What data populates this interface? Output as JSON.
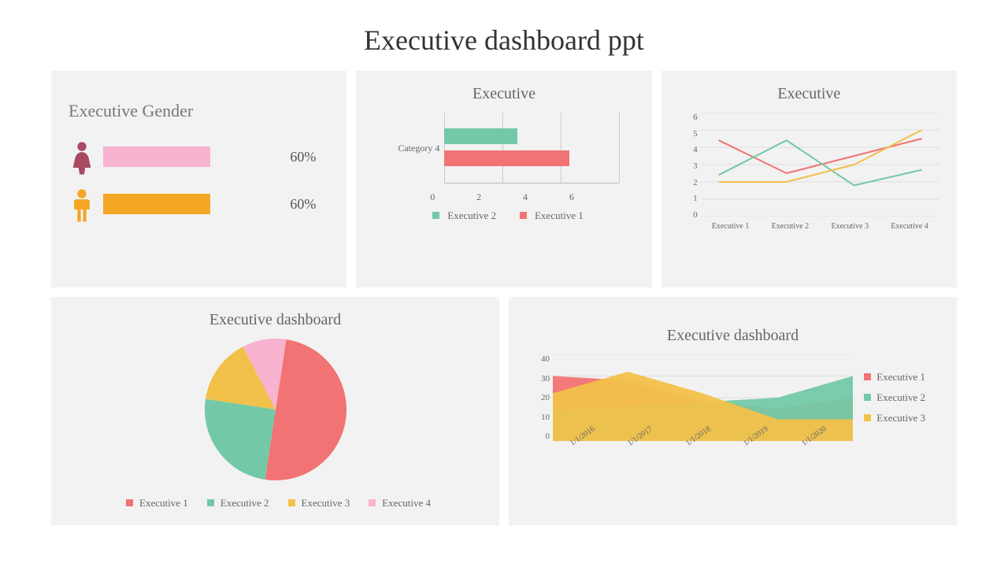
{
  "title": "Executive dashboard ppt",
  "colors": {
    "coral": "#f17373",
    "mint": "#73c9a7",
    "gold": "#f2c14a",
    "pink": "#f7b3d0",
    "orange": "#f5a623",
    "maroon": "#a84a63",
    "card_bg": "#f2f2f2",
    "text": "#666666",
    "grid": "#cccccc"
  },
  "gender_card": {
    "title": "Executive Gender",
    "rows": [
      {
        "icon": "female",
        "icon_color": "#a84a63",
        "bar_color": "#f7b3d0",
        "pct": 60,
        "label": "60%"
      },
      {
        "icon": "male",
        "icon_color": "#f5a623",
        "bar_color": "#f5a623",
        "pct": 60,
        "label": "60%"
      }
    ]
  },
  "hbar_card": {
    "title": "Executive",
    "category_label": "Category 4",
    "xmax": 6,
    "xtick_step": 2,
    "xticks": [
      "0",
      "2",
      "4",
      "6"
    ],
    "series": [
      {
        "name": "Executive 2",
        "color": "#73c9a7",
        "value": 2.5
      },
      {
        "name": "Executive 1",
        "color": "#f17373",
        "value": 4.3
      }
    ]
  },
  "line_card": {
    "title": "Executive",
    "ymax": 6,
    "ytick_step": 1,
    "yticks": [
      "0",
      "1",
      "2",
      "3",
      "4",
      "5",
      "6"
    ],
    "categories": [
      "Executive 1",
      "Executive 2",
      "Executive 3",
      "Executive 4"
    ],
    "series": [
      {
        "color": "#f17373",
        "values": [
          4.4,
          2.5,
          3.5,
          4.5
        ]
      },
      {
        "color": "#73c9a7",
        "values": [
          2.4,
          4.4,
          1.8,
          2.7
        ]
      },
      {
        "color": "#f2c14a",
        "values": [
          2.0,
          2.0,
          3.0,
          5.0
        ]
      }
    ],
    "grid_color": "#d9d9d9"
  },
  "pie_card": {
    "title": "Executive dashboard",
    "slices": [
      {
        "name": "Executive 1",
        "color": "#f17373",
        "value": 50
      },
      {
        "name": "Executive 2",
        "color": "#73c9a7",
        "value": 25
      },
      {
        "name": "Executive 3",
        "color": "#f2c14a",
        "value": 15
      },
      {
        "name": "Executive 4",
        "color": "#f7b3d0",
        "value": 10
      }
    ]
  },
  "area_card": {
    "title": "Executive dashboard",
    "ymax": 40,
    "ytick_step": 10,
    "yticks": [
      "0",
      "10",
      "20",
      "30",
      "40"
    ],
    "categories": [
      "1/1/2016",
      "1/1/2017",
      "1/1/2018",
      "1/1/2019",
      "1/1/2020"
    ],
    "series": [
      {
        "name": "Executive 1",
        "color": "#f17373",
        "values": [
          30,
          28,
          18,
          15,
          20
        ]
      },
      {
        "name": "Executive 2",
        "color": "#73c9a7",
        "values": [
          14,
          16,
          18,
          20,
          30
        ]
      },
      {
        "name": "Executive 3",
        "color": "#f2c14a",
        "values": [
          22,
          32,
          22,
          10,
          10
        ]
      }
    ]
  }
}
